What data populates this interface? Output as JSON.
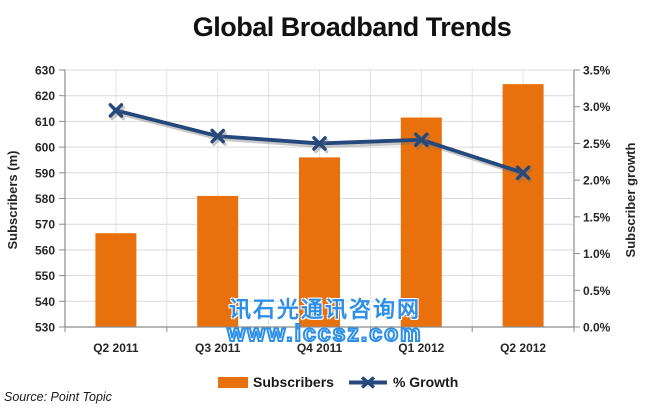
{
  "title": "Global Broadband Trends",
  "source": "Source: Point Topic",
  "watermark": {
    "line1": "讯石光通讯咨询网",
    "line2": "www.iccsz.com",
    "color": "#2E8FE8"
  },
  "legend": [
    {
      "label": "Subscribers",
      "type": "bar"
    },
    {
      "label": "% Growth",
      "type": "line"
    }
  ],
  "colors": {
    "bar": "#E8710D",
    "line": "#25487D",
    "line_shadow": "rgba(110,110,110,0.38)",
    "grid": "#D9D9D9",
    "grid_minor_v": "#E2E2E2",
    "axis": "#8C8C8C",
    "text": "#262626"
  },
  "chart_data": {
    "type": "bar",
    "combo": "bar+line",
    "title": "Global Broadband Trends",
    "categories": [
      "Q2 2011",
      "Q3 2011",
      "Q4 2011",
      "Q1 2012",
      "Q2 2012"
    ],
    "series": [
      {
        "name": "Subscribers",
        "type": "bar",
        "axis": "left",
        "values": [
          566.5,
          581,
          596,
          611.5,
          624.5
        ]
      },
      {
        "name": "% Growth",
        "type": "line",
        "axis": "right",
        "values": [
          2.95,
          2.6,
          2.5,
          2.55,
          2.1
        ]
      }
    ],
    "left_axis": {
      "label": "Subscribers (m)",
      "min": 530,
      "max": 630,
      "step": 10,
      "ticks": [
        "530",
        "540",
        "550",
        "560",
        "570",
        "580",
        "590",
        "600",
        "610",
        "620",
        "630"
      ]
    },
    "right_axis": {
      "label": "Subscriber growth",
      "min": 0,
      "max": 3.5,
      "step": 0.5,
      "ticks": [
        "0.0%",
        "0.5%",
        "1.0%",
        "1.5%",
        "2.0%",
        "2.5%",
        "3.0%",
        "3.5%"
      ]
    },
    "grid": true,
    "legend_position": "bottom"
  }
}
